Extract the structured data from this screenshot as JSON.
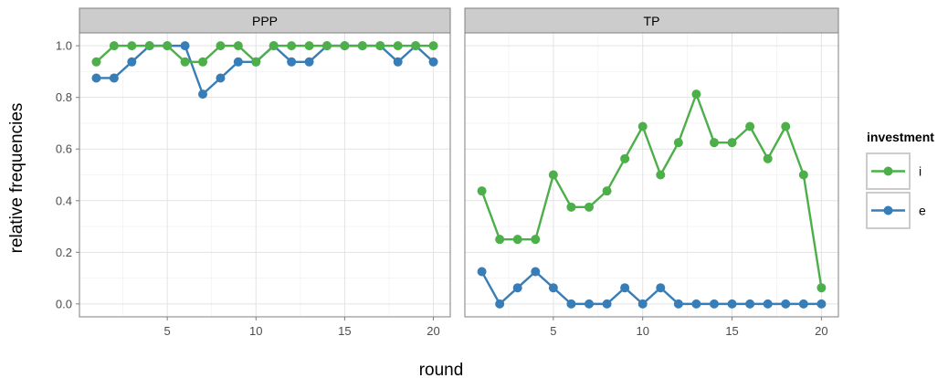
{
  "chart_data": {
    "type": "line",
    "facets": [
      "PPP",
      "TP"
    ],
    "xlabel": "round",
    "ylabel": "relative frequencies",
    "x": [
      1,
      2,
      3,
      4,
      5,
      6,
      7,
      8,
      9,
      10,
      11,
      12,
      13,
      14,
      15,
      16,
      17,
      18,
      19,
      20
    ],
    "xlim": [
      0.05,
      20.95
    ],
    "ylim": [
      -0.05,
      1.05
    ],
    "x_ticks": [
      5,
      10,
      15,
      20
    ],
    "x_tick_labels": [
      "5",
      "10",
      "15",
      "20"
    ],
    "y_ticks": [
      0.0,
      0.2,
      0.4,
      0.6,
      0.8,
      1.0
    ],
    "y_tick_labels": [
      "0.0",
      "0.2",
      "0.4",
      "0.6",
      "0.8",
      "1.0"
    ],
    "grid": true,
    "legend": {
      "title": "investment",
      "placement": "right",
      "entries": [
        "i",
        "e"
      ]
    },
    "series": [
      {
        "name": "i",
        "color": "#4daf4a",
        "values": {
          "PPP": [
            0.9375,
            1.0,
            1.0,
            1.0,
            1.0,
            0.9375,
            0.9375,
            1.0,
            1.0,
            0.9375,
            1.0,
            1.0,
            1.0,
            1.0,
            1.0,
            1.0,
            1.0,
            1.0,
            1.0,
            1.0
          ],
          "TP": [
            0.4375,
            0.25,
            0.25,
            0.25,
            0.5,
            0.375,
            0.375,
            0.4375,
            0.5625,
            0.6875,
            0.5,
            0.625,
            0.8125,
            0.625,
            0.625,
            0.6875,
            0.5625,
            0.6875,
            0.5,
            0.0625
          ]
        }
      },
      {
        "name": "e",
        "color": "#377eb8",
        "values": {
          "PPP": [
            0.875,
            0.875,
            0.9375,
            1.0,
            1.0,
            1.0,
            0.8125,
            0.875,
            0.9375,
            0.9375,
            1.0,
            0.9375,
            0.9375,
            1.0,
            1.0,
            1.0,
            1.0,
            0.9375,
            1.0,
            0.9375
          ],
          "TP": [
            0.125,
            0.0,
            0.0625,
            0.125,
            0.0625,
            0.0,
            0.0,
            0.0,
            0.0625,
            0.0,
            0.0625,
            0.0,
            0.0,
            0.0,
            0.0,
            0.0,
            0.0,
            0.0,
            0.0,
            0.0
          ]
        }
      }
    ]
  }
}
